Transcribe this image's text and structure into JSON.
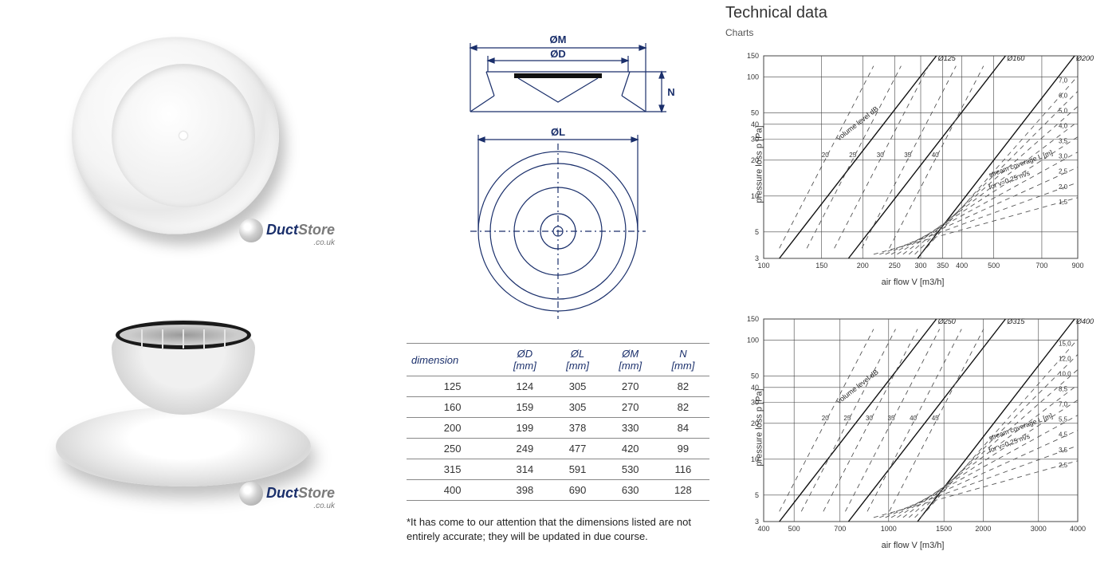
{
  "branding": {
    "part1": "Duct",
    "part2": "Store",
    "tld": ".co.uk"
  },
  "drawing": {
    "labels": {
      "OM": "ØM",
      "OD": "ØD",
      "OL": "ØL",
      "N": "N"
    },
    "line_color": "#1a2f6b",
    "line_width": 1.2
  },
  "table": {
    "header_dimension": "dimension",
    "columns": [
      {
        "label": "ØD",
        "unit": "[mm]"
      },
      {
        "label": "ØL",
        "unit": "[mm]"
      },
      {
        "label": "ØM",
        "unit": "[mm]"
      },
      {
        "label": "N",
        "unit": "[mm]"
      }
    ],
    "rows": [
      [
        "125",
        "124",
        "305",
        "270",
        "82"
      ],
      [
        "160",
        "159",
        "305",
        "270",
        "82"
      ],
      [
        "200",
        "199",
        "378",
        "330",
        "84"
      ],
      [
        "250",
        "249",
        "477",
        "420",
        "99"
      ],
      [
        "315",
        "314",
        "591",
        "530",
        "116"
      ],
      [
        "400",
        "398",
        "690",
        "630",
        "128"
      ]
    ],
    "border_color": "#888888",
    "header_color": "#1a2f6b",
    "fontsize": 13
  },
  "footnote": "*It has come to our attention that the dimensions listed are not entirely accurate; they will be updated in due course.",
  "technical": {
    "title": "Technical data",
    "subtitle": "Charts"
  },
  "chart1": {
    "type": "loglog-nomograph",
    "x_label": "air flow V [m3/h]",
    "y_label": "pressure loss p [Pa]",
    "x_ticks": [
      100,
      150,
      200,
      250,
      300,
      350,
      400,
      500,
      700,
      900
    ],
    "y_ticks": [
      3,
      5,
      10,
      20,
      30,
      40,
      50,
      100,
      150
    ],
    "xlim": [
      100,
      900
    ],
    "ylim": [
      3,
      150
    ],
    "diag_series_labels": [
      "Ø125",
      "Ø160",
      "Ø200"
    ],
    "annotation_left": "volume level dB",
    "annotation_right_l1": "stream coverage L [m]",
    "annotation_right_l2": "for v=0,25 m/s",
    "iso_db": [
      "20",
      "25",
      "30",
      "35",
      "40"
    ],
    "iso_L": [
      "1,5",
      "2,0",
      "2,5",
      "3,0",
      "3,5",
      "4,0",
      "5,0",
      "6,0",
      "7,0"
    ],
    "grid_color": "#444444",
    "line_color": "#111111",
    "dash_color": "#555555",
    "background_color": "#ffffff",
    "fontsize": 9
  },
  "chart2": {
    "type": "loglog-nomograph",
    "x_label": "air flow V [m3/h]",
    "y_label": "pressure loss p [Pa]",
    "x_ticks": [
      400,
      500,
      700,
      1000,
      1500,
      2000,
      3000,
      4000
    ],
    "y_ticks": [
      3,
      5,
      10,
      20,
      30,
      40,
      50,
      100,
      150
    ],
    "xlim": [
      400,
      4000
    ],
    "ylim": [
      3,
      150
    ],
    "diag_series_labels": [
      "Ø250",
      "Ø315",
      "Ø400"
    ],
    "annotation_left": "volume level dB",
    "annotation_right_l1": "stream coverage L [m]",
    "annotation_right_l2": "for v=0,25 m/s",
    "iso_db": [
      "20",
      "25",
      "30",
      "35",
      "40",
      "45"
    ],
    "iso_L": [
      "2,5",
      "3,5",
      "4,5",
      "5,5",
      "7,0",
      "8,5",
      "10,0",
      "12,0",
      "15,0"
    ],
    "grid_color": "#444444",
    "line_color": "#111111",
    "dash_color": "#555555",
    "background_color": "#ffffff",
    "fontsize": 9
  }
}
